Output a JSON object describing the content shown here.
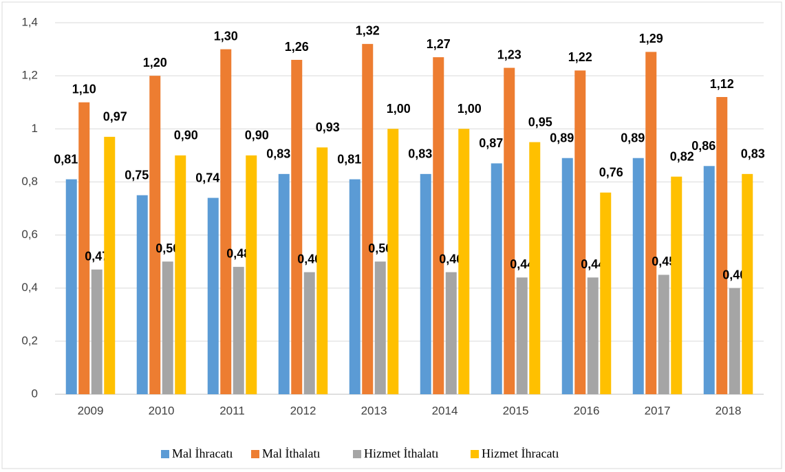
{
  "chart_data": {
    "type": "bar",
    "categories": [
      "2009",
      "2010",
      "2011",
      "2012",
      "2013",
      "2014",
      "2015",
      "2016",
      "2017",
      "2018"
    ],
    "series": [
      {
        "name": "Mal İhracatı",
        "color": "#5b9bd5",
        "values": [
          0.81,
          0.75,
          0.74,
          0.83,
          0.81,
          0.83,
          0.87,
          0.89,
          0.89,
          0.86
        ],
        "value_labels": [
          "0,81",
          "0,75",
          "0,74",
          "0,83",
          "0,81",
          "0,83",
          "0,87",
          "0,89",
          "0,89",
          "0,86"
        ]
      },
      {
        "name": "Mal İthalatı",
        "color": "#ed7d31",
        "values": [
          1.1,
          1.2,
          1.3,
          1.26,
          1.32,
          1.27,
          1.23,
          1.22,
          1.29,
          1.12
        ],
        "value_labels": [
          "1,10",
          "1,20",
          "1,30",
          "1,26",
          "1,32",
          "1,27",
          "1,23",
          "1,22",
          "1,29",
          "1,12"
        ]
      },
      {
        "name": "Hizmet İthalatı",
        "color": "#a5a5a5",
        "values": [
          0.47,
          0.5,
          0.48,
          0.46,
          0.5,
          0.46,
          0.44,
          0.44,
          0.45,
          0.4
        ],
        "value_labels": [
          "0,47",
          "0,50",
          "0,48",
          "0,46",
          "0,50",
          "0,46",
          "0,44",
          "0,44",
          "0,45",
          "0,40"
        ]
      },
      {
        "name": "Hizmet İhracatı",
        "color": "#ffc000",
        "values": [
          0.97,
          0.9,
          0.9,
          0.93,
          1.0,
          1.0,
          0.95,
          0.76,
          0.82,
          0.83
        ],
        "value_labels": [
          "0,97",
          "0,90",
          "0,90",
          "0,93",
          "1,00",
          "1,00",
          "0,95",
          "0,76",
          "0,82",
          "0,83"
        ]
      }
    ],
    "ylim": [
      0,
      1.4
    ],
    "yticks": [
      0,
      {
        "value": 0.2,
        "label": "0,2"
      },
      {
        "value": 0.4,
        "label": "0,4"
      },
      {
        "value": 0.6,
        "label": "0,6"
      },
      {
        "value": 0.8,
        "label": "0,8"
      },
      1,
      {
        "value": 1.2,
        "label": "1,2"
      },
      {
        "value": 1.4,
        "label": "1,4"
      }
    ],
    "grid": true,
    "legend": "bottom"
  }
}
